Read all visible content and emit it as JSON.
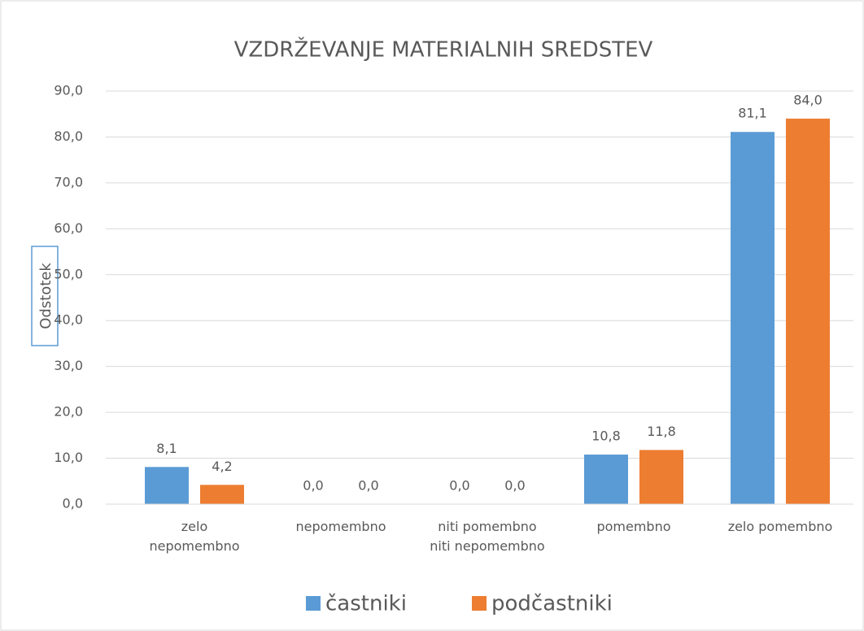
{
  "chart_data": {
    "type": "bar",
    "title": "VZDRŽEVANJE MATERIALNIH SREDSTEV",
    "y_label": "Odstotek",
    "categories": [
      "zelo\nnepomembno",
      "nepomembno",
      "niti pomembno\nniti nepomembno",
      "pomembno",
      "zelo pomembno"
    ],
    "series": [
      {
        "name": "častniki",
        "color": "#5b9bd5",
        "values": [
          8.1,
          0.0,
          0.0,
          10.8,
          81.1
        ],
        "value_labels": [
          "8,1",
          "0,0",
          "0,0",
          "10,8",
          "81,1"
        ]
      },
      {
        "name": "podčastniki",
        "color": "#ed7d31",
        "values": [
          4.2,
          0.0,
          0.0,
          11.8,
          84.0
        ],
        "value_labels": [
          "4,2",
          "0,0",
          "0,0",
          "11,8",
          "84,0"
        ]
      }
    ],
    "ylim": [
      0,
      90
    ],
    "yticks": [
      {
        "value": 0,
        "label": "0,0"
      },
      {
        "value": 10,
        "label": "10,0"
      },
      {
        "value": 20,
        "label": "20,0"
      },
      {
        "value": 30,
        "label": "30,0"
      },
      {
        "value": 40,
        "label": "40,0"
      },
      {
        "value": 50,
        "label": "50,0"
      },
      {
        "value": 60,
        "label": "60,0"
      },
      {
        "value": 70,
        "label": "70,0"
      },
      {
        "value": 80,
        "label": "80,0"
      },
      {
        "value": 90,
        "label": "90,0"
      }
    ],
    "grid": true,
    "legend": "bottom"
  }
}
